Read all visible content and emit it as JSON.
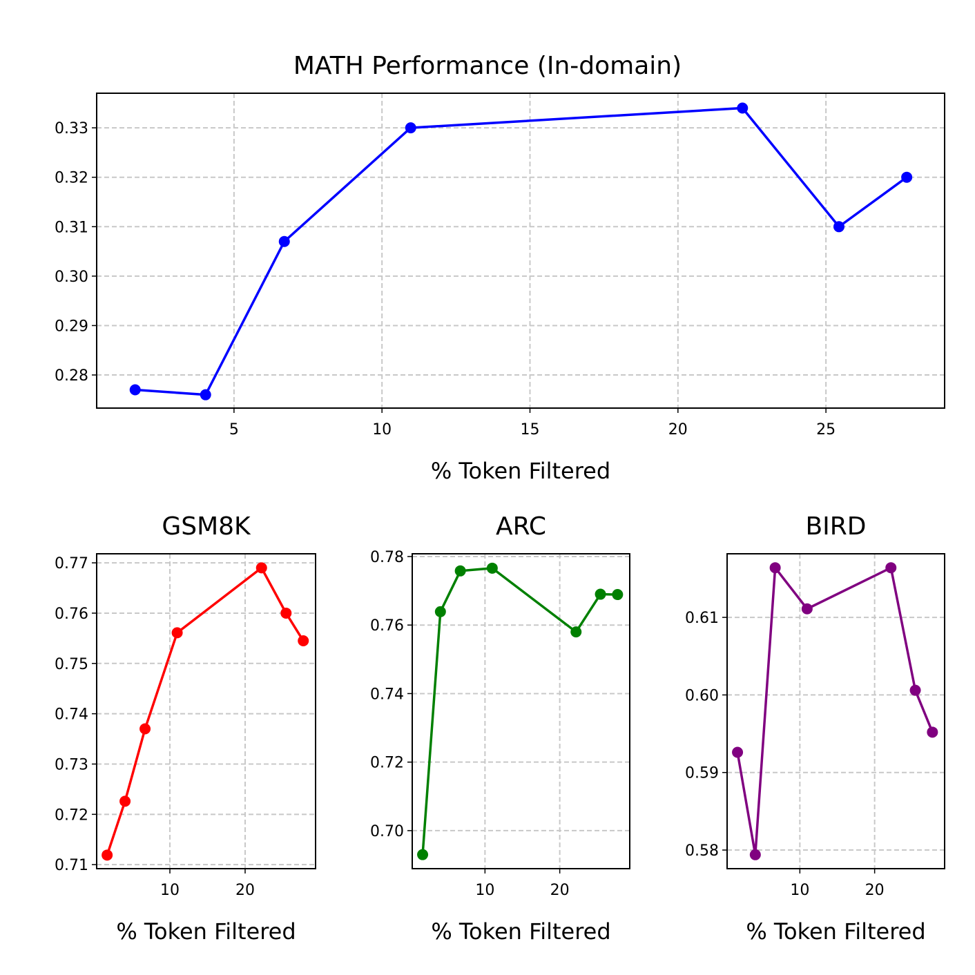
{
  "chart_data": [
    {
      "type": "line",
      "title": "MATH Performance (In-domain)",
      "x_label": "% Token Filtered",
      "color": "#0000ff",
      "grid": true,
      "x": [
        1.66,
        4.04,
        6.7,
        10.97,
        22.18,
        25.44,
        27.73
      ],
      "values": [
        0.277,
        0.276,
        0.307,
        0.33,
        0.334,
        0.31,
        0.32
      ],
      "xlim": [
        0.36,
        29.01
      ],
      "xticks": [
        5,
        10,
        15,
        20,
        25
      ],
      "ylim": [
        0.2733,
        0.337
      ],
      "yticks": [
        0.28,
        0.29,
        {
          "value": 0.3,
          "label": "0.30"
        },
        0.31,
        0.32,
        0.33
      ]
    },
    {
      "type": "line",
      "title": "GSM8K",
      "x_label": "% Token Filtered",
      "color": "#ff0000",
      "grid": true,
      "x": [
        1.66,
        4.04,
        6.7,
        10.97,
        22.18,
        25.44,
        27.73
      ],
      "values": [
        0.7119,
        0.7226,
        0.737,
        0.7561,
        0.769,
        0.76,
        0.7545
      ],
      "xlim": [
        0.27,
        29.36
      ],
      "xticks": [
        10,
        20
      ],
      "ylim": [
        0.7092,
        0.7718
      ],
      "yticks": [
        0.71,
        0.72,
        0.73,
        0.74,
        0.75,
        0.76,
        0.77
      ]
    },
    {
      "type": "line",
      "title": "ARC",
      "x_label": "% Token Filtered",
      "color": "#008000",
      "grid": true,
      "x": [
        1.66,
        4.04,
        6.7,
        10.97,
        22.18,
        25.44,
        27.73
      ],
      "values": [
        0.693,
        0.7639,
        0.7758,
        0.7766,
        0.758,
        0.769,
        0.7689
      ],
      "xlim": [
        0.27,
        29.36
      ],
      "xticks": [
        10,
        20
      ],
      "ylim": [
        0.6889,
        0.7808
      ],
      "yticks": [
        {
          "value": 0.7,
          "label": "0.70"
        },
        0.72,
        0.74,
        0.76,
        0.78
      ]
    },
    {
      "type": "line",
      "title": "BIRD",
      "x_label": "% Token Filtered",
      "color": "#800080",
      "grid": true,
      "x": [
        1.66,
        4.04,
        6.7,
        10.97,
        22.18,
        25.44,
        27.73
      ],
      "values": [
        0.5926,
        0.5794,
        0.6164,
        0.6111,
        0.6164,
        0.6006,
        0.5952
      ],
      "xlim": [
        0.27,
        29.36
      ],
      "xticks": [
        10,
        20
      ],
      "ylim": [
        0.5776,
        0.6182
      ],
      "yticks": [
        0.58,
        0.59,
        {
          "value": 0.6,
          "label": "0.60"
        },
        0.61
      ]
    }
  ]
}
